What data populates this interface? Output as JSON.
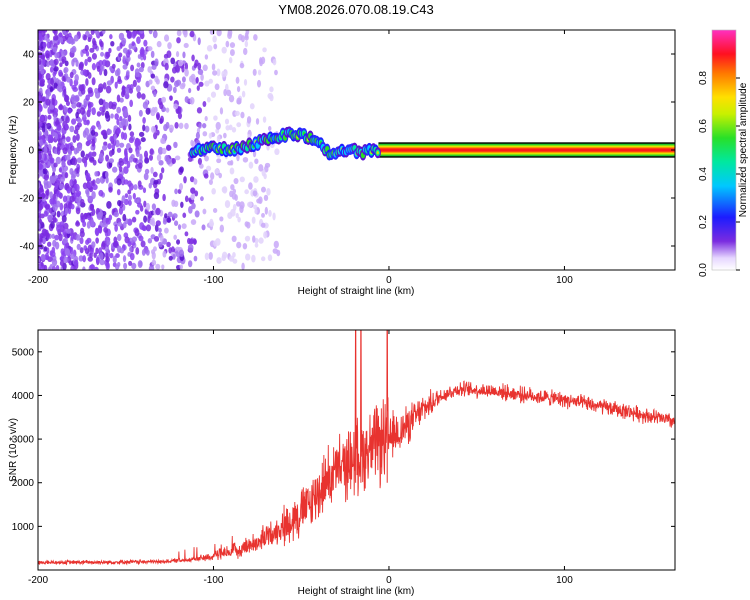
{
  "title": "YM08.2026.070.08.19.C43",
  "chart_data": [
    {
      "type": "heatmap",
      "name": "spectrogram",
      "xlabel": "Height of straight line (km)",
      "ylabel": "Frequency (Hz)",
      "xlim": [
        -200,
        163
      ],
      "ylim": [
        -50,
        50
      ],
      "xticks": [
        -200,
        -100,
        0,
        100
      ],
      "xtick_labels": [
        "-200",
        "-100",
        "0",
        "100"
      ],
      "yticks": [
        -40,
        -20,
        0,
        20,
        40
      ],
      "ytick_labels": [
        "-40",
        "-20",
        "0",
        "20",
        "40"
      ],
      "colorbar": {
        "label": "Normalized spectral amplitude",
        "range": [
          0,
          1
        ],
        "ticks": [
          0.0,
          0.2,
          0.4,
          0.6,
          0.8
        ],
        "tick_labels": [
          "0.0",
          "0.2",
          "0.4",
          "0.6",
          "0.8"
        ],
        "colormap": "rainbow (purple-blue-cyan-green-yellow-red-magenta)"
      },
      "ridge": {
        "description": "frequency of maximum spectral amplitude vs height",
        "x": [
          -112,
          -100,
          -90,
          -80,
          -70,
          -62,
          -55,
          -48,
          -42,
          -37,
          -33,
          -30,
          -27,
          -24,
          -20,
          -15,
          -10,
          -5,
          0,
          163
        ],
        "y": [
          0,
          1,
          0,
          2,
          4,
          6,
          7,
          6,
          4,
          1,
          -3,
          -2,
          0,
          -1,
          0,
          -1,
          0,
          0,
          0,
          0
        ]
      },
      "noise_region_x": [
        -200,
        -75
      ],
      "tone_band_hz": 0
    },
    {
      "type": "line",
      "name": "snr",
      "xlabel": "Height of straight line (km)",
      "ylabel": "SNR (10 * v/v)",
      "xlim": [
        -200,
        163
      ],
      "ylim": [
        0,
        5500
      ],
      "xticks": [
        -200,
        -100,
        0,
        100
      ],
      "xtick_labels": [
        "-200",
        "-100",
        "0",
        "100"
      ],
      "yticks": [
        1000,
        2000,
        3000,
        4000,
        5000
      ],
      "ytick_labels": [
        "1000",
        "2000",
        "3000",
        "4000",
        "5000"
      ],
      "color": "#e8332f",
      "trend": {
        "x": [
          -200,
          -160,
          -130,
          -110,
          -90,
          -75,
          -60,
          -45,
          -35,
          -25,
          -15,
          -5,
          0,
          10,
          20,
          30,
          40,
          60,
          80,
          100,
          120,
          140,
          163
        ],
        "y": [
          170,
          180,
          190,
          250,
          400,
          650,
          1000,
          1500,
          2100,
          2400,
          2700,
          2900,
          3000,
          3300,
          3700,
          4000,
          4150,
          4100,
          4000,
          3900,
          3750,
          3600,
          3400
        ]
      },
      "spikes": [
        {
          "x": -19,
          "y": 5500
        },
        {
          "x": -16,
          "y": 5500
        },
        {
          "x": -1,
          "y": 5500
        }
      ]
    }
  ]
}
